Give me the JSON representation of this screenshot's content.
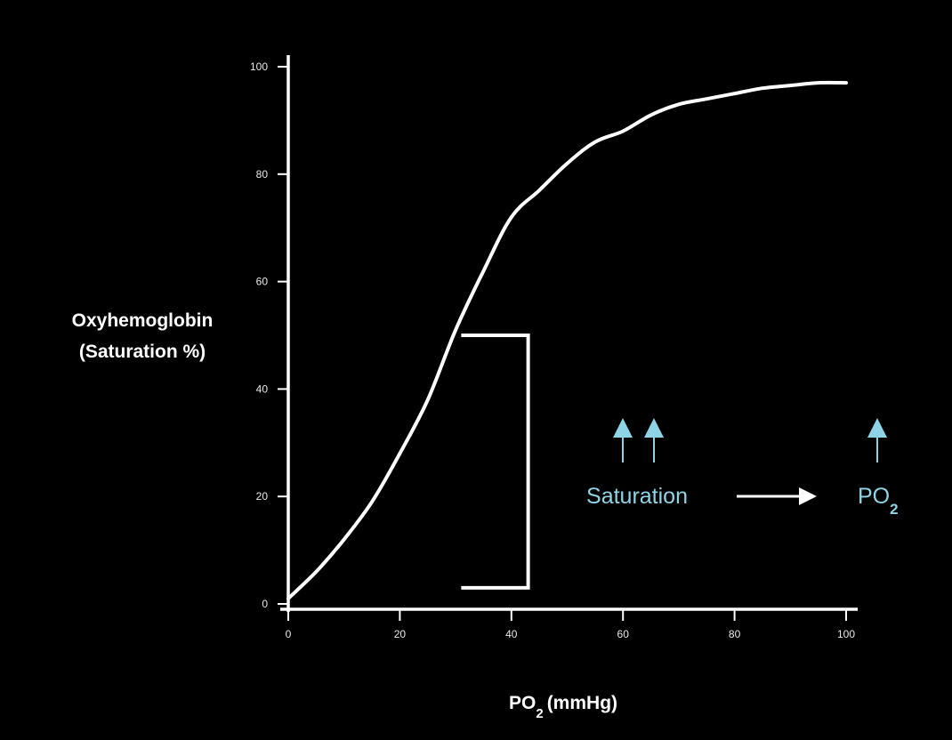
{
  "chart_data": {
    "type": "line",
    "ylabel_line1": "Oxyhemoglobin",
    "ylabel_line2": "(Saturation %)",
    "xlabel_main": "PO",
    "xlabel_sub": "2",
    "xlabel_unit": "(mmHg)",
    "xlim": [
      0,
      100
    ],
    "ylim": [
      0,
      100
    ],
    "x_ticks": [
      0,
      20,
      40,
      60,
      80,
      100
    ],
    "y_ticks": [
      0,
      20,
      40,
      60,
      80,
      100
    ],
    "grid": false,
    "series": [
      {
        "x": [
          0,
          5,
          10,
          15,
          20,
          25,
          30,
          35,
          40,
          45,
          50,
          55,
          60,
          65,
          70,
          75,
          80,
          85,
          90,
          95,
          100
        ],
        "values": [
          1,
          6,
          12,
          19,
          28,
          38,
          51,
          62,
          72,
          77,
          82,
          86,
          88,
          91,
          93,
          94,
          95,
          96,
          96.5,
          97,
          97
        ]
      }
    ],
    "bracket": {
      "x_left": 31,
      "x_right": 43,
      "y_top": 50,
      "y_bottom": 3
    },
    "annotation": {
      "saturation_label": "Saturation",
      "po_label": "PO",
      "po_sub": "2",
      "saturation_arrow_count": 2,
      "po_arrow_count": 1,
      "accent_color": "#8fd4e6",
      "line_color": "#ffffff"
    }
  }
}
